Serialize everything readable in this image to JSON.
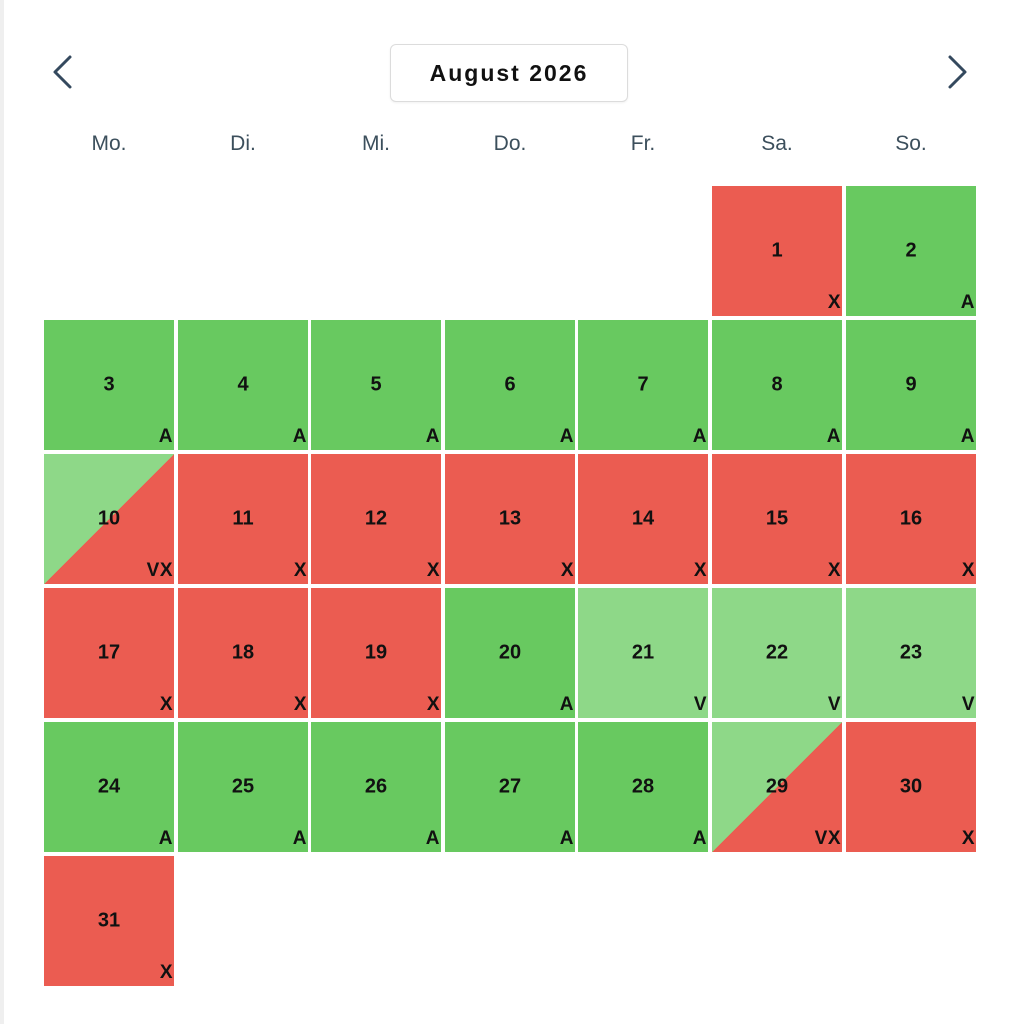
{
  "calendar": {
    "month_title": "August 2026",
    "weekdays": [
      "Mo.",
      "Di.",
      "Mi.",
      "Do.",
      "Fr.",
      "Sa.",
      "So."
    ],
    "status_colors": {
      "available": "#68c960",
      "booked": "#eb5c51",
      "partial": "#8ed888"
    },
    "days": [
      {
        "num": "1",
        "code": "X"
      },
      {
        "num": "2",
        "code": "A"
      },
      {
        "num": "3",
        "code": "A"
      },
      {
        "num": "4",
        "code": "A"
      },
      {
        "num": "5",
        "code": "A"
      },
      {
        "num": "6",
        "code": "A"
      },
      {
        "num": "7",
        "code": "A"
      },
      {
        "num": "8",
        "code": "A"
      },
      {
        "num": "9",
        "code": "A"
      },
      {
        "num": "10",
        "code": "VX"
      },
      {
        "num": "11",
        "code": "X"
      },
      {
        "num": "12",
        "code": "X"
      },
      {
        "num": "13",
        "code": "X"
      },
      {
        "num": "14",
        "code": "X"
      },
      {
        "num": "15",
        "code": "X"
      },
      {
        "num": "16",
        "code": "X"
      },
      {
        "num": "17",
        "code": "X"
      },
      {
        "num": "18",
        "code": "X"
      },
      {
        "num": "19",
        "code": "X"
      },
      {
        "num": "20",
        "code": "A"
      },
      {
        "num": "21",
        "code": "V"
      },
      {
        "num": "22",
        "code": "V"
      },
      {
        "num": "23",
        "code": "V"
      },
      {
        "num": "24",
        "code": "A"
      },
      {
        "num": "25",
        "code": "A"
      },
      {
        "num": "26",
        "code": "A"
      },
      {
        "num": "27",
        "code": "A"
      },
      {
        "num": "28",
        "code": "A"
      },
      {
        "num": "29",
        "code": "VX"
      },
      {
        "num": "30",
        "code": "X"
      },
      {
        "num": "31",
        "code": "X"
      }
    ]
  }
}
